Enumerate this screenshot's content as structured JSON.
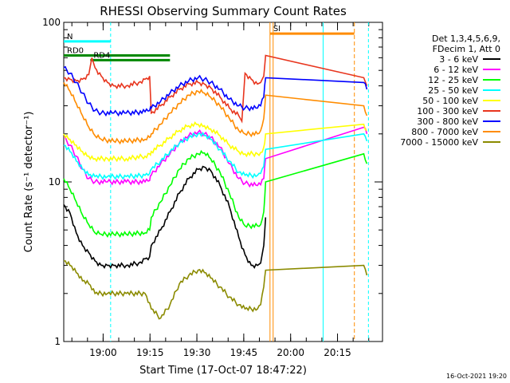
{
  "chart_data": {
    "type": "line",
    "title": "RHESSI Observing Summary Count Rates",
    "xlabel": "Start Time (17-Oct-07 18:47:22)",
    "ylabel": "Count Rate (s⁻¹ detector⁻¹)",
    "yscale": "log",
    "ylim": [
      1,
      100
    ],
    "xlim_minutes_after_start": [
      0,
      102
    ],
    "xticks": [
      {
        "label": "19:00",
        "minute": 12.6
      },
      {
        "label": "19:15",
        "minute": 27.6
      },
      {
        "label": "19:30",
        "minute": 42.6
      },
      {
        "label": "19:45",
        "minute": 57.6
      },
      {
        "label": "20:00",
        "minute": 72.6
      },
      {
        "label": "20:15",
        "minute": 87.6
      }
    ],
    "yticks": [
      {
        "label": "1",
        "value": 1
      },
      {
        "label": "10",
        "value": 10
      },
      {
        "label": "100",
        "value": 100
      }
    ],
    "legend": {
      "placement": "right",
      "header": [
        "Det 1,3,4,5,6,9,",
        "FDecim 1, Att 0"
      ],
      "entries": [
        {
          "name": "3 - 6 keV",
          "color": "#000000"
        },
        {
          "name": "6 - 12 keV",
          "color": "#ff00ff"
        },
        {
          "name": "12 - 25 keV",
          "color": "#00ff00"
        },
        {
          "name": "25 - 50 keV",
          "color": "#00ffff"
        },
        {
          "name": "50 - 100 keV",
          "color": "#ffff00"
        },
        {
          "name": "100 - 300 keV",
          "color": "#e8351e"
        },
        {
          "name": "300 - 800 keV",
          "color": "#0000ff"
        },
        {
          "name": "800 - 7000 keV",
          "color": "#ff8c00"
        },
        {
          "name": "7000 - 15000 keV",
          "color": "#8b8b00"
        }
      ]
    },
    "series": [
      {
        "name": "3 - 6 keV",
        "color": "#000000",
        "points": [
          [
            0,
            7.2
          ],
          [
            2,
            6.4
          ],
          [
            4,
            4.8
          ],
          [
            6,
            4.0
          ],
          [
            8,
            3.6
          ],
          [
            10,
            3.2
          ],
          [
            12,
            3.0
          ],
          [
            14,
            3.0
          ],
          [
            16,
            3.0
          ],
          [
            20,
            3.0
          ],
          [
            24,
            3.1
          ],
          [
            26,
            3.3
          ],
          [
            27.5,
            3.4
          ],
          [
            28,
            4.0
          ],
          [
            31,
            5.0
          ],
          [
            34,
            6.5
          ],
          [
            37,
            8.5
          ],
          [
            40,
            10.5
          ],
          [
            43,
            12.0
          ],
          [
            45,
            12.4
          ],
          [
            47,
            11.8
          ],
          [
            50,
            9.5
          ],
          [
            53,
            7.0
          ],
          [
            56,
            4.5
          ],
          [
            58,
            3.5
          ],
          [
            60,
            3.0
          ],
          [
            62,
            3.0
          ],
          [
            63,
            3.1
          ],
          [
            64,
            4.0
          ],
          [
            64.6,
            6.0
          ]
        ]
      },
      {
        "name": "6 - 12 keV",
        "color": "#ff00ff",
        "points": [
          [
            0,
            19.0
          ],
          [
            2,
            17.0
          ],
          [
            4,
            14.5
          ],
          [
            6,
            12.0
          ],
          [
            8,
            10.5
          ],
          [
            10,
            10.0
          ],
          [
            14,
            10.0
          ],
          [
            20,
            10.0
          ],
          [
            26,
            10.0
          ],
          [
            27.5,
            10.2
          ],
          [
            28,
            11.0
          ],
          [
            31,
            13.0
          ],
          [
            34,
            15.0
          ],
          [
            37,
            17.5
          ],
          [
            40,
            19.5
          ],
          [
            43,
            20.5
          ],
          [
            45,
            20.0
          ],
          [
            47,
            19.0
          ],
          [
            50,
            16.5
          ],
          [
            53,
            13.0
          ],
          [
            56,
            10.5
          ],
          [
            58,
            9.8
          ],
          [
            62,
            9.5
          ],
          [
            63,
            9.6
          ],
          [
            64,
            10.5
          ],
          [
            64.6,
            14.0
          ],
          [
            96,
            22.0
          ],
          [
            97,
            20.0
          ]
        ]
      },
      {
        "name": "12 - 25 keV",
        "color": "#00ff00",
        "points": [
          [
            0,
            10.5
          ],
          [
            2,
            9.0
          ],
          [
            4,
            7.5
          ],
          [
            6,
            6.2
          ],
          [
            8,
            5.4
          ],
          [
            10,
            4.8
          ],
          [
            12,
            4.7
          ],
          [
            16,
            4.7
          ],
          [
            20,
            4.7
          ],
          [
            26,
            4.8
          ],
          [
            27.5,
            5.0
          ],
          [
            28,
            6.0
          ],
          [
            31,
            7.5
          ],
          [
            34,
            9.5
          ],
          [
            37,
            12.0
          ],
          [
            40,
            14.0
          ],
          [
            43,
            15.0
          ],
          [
            45,
            15.2
          ],
          [
            47,
            14.0
          ],
          [
            50,
            11.5
          ],
          [
            53,
            8.5
          ],
          [
            56,
            6.0
          ],
          [
            58,
            5.3
          ],
          [
            62,
            5.3
          ],
          [
            63,
            5.4
          ],
          [
            64,
            6.5
          ],
          [
            64.6,
            10.0
          ],
          [
            96,
            15.0
          ],
          [
            97,
            13.0
          ]
        ]
      },
      {
        "name": "25 - 50 keV",
        "color": "#00ffff",
        "points": [
          [
            0,
            17.0
          ],
          [
            2,
            15.5
          ],
          [
            4,
            13.5
          ],
          [
            6,
            12.0
          ],
          [
            8,
            11.0
          ],
          [
            10,
            10.8
          ],
          [
            14,
            10.8
          ],
          [
            20,
            10.8
          ],
          [
            26,
            11.0
          ],
          [
            27.5,
            11.3
          ],
          [
            28,
            12.0
          ],
          [
            31,
            13.5
          ],
          [
            34,
            15.5
          ],
          [
            37,
            17.5
          ],
          [
            40,
            19.0
          ],
          [
            43,
            20.0
          ],
          [
            45,
            19.5
          ],
          [
            47,
            18.5
          ],
          [
            50,
            16.0
          ],
          [
            53,
            13.5
          ],
          [
            56,
            11.5
          ],
          [
            58,
            11.0
          ],
          [
            62,
            11.0
          ],
          [
            63,
            11.3
          ],
          [
            64,
            12.5
          ],
          [
            64.6,
            16.0
          ],
          [
            96,
            20.0
          ],
          [
            97,
            18.0
          ]
        ]
      },
      {
        "name": "50 - 100 keV",
        "color": "#ffff00",
        "points": [
          [
            0,
            20.0
          ],
          [
            2,
            18.5
          ],
          [
            4,
            17.0
          ],
          [
            6,
            15.5
          ],
          [
            8,
            14.5
          ],
          [
            10,
            14.0
          ],
          [
            14,
            14.0
          ],
          [
            20,
            14.0
          ],
          [
            26,
            14.5
          ],
          [
            27.5,
            15.0
          ],
          [
            28,
            15.5
          ],
          [
            31,
            17.0
          ],
          [
            34,
            19.0
          ],
          [
            37,
            21.0
          ],
          [
            40,
            22.5
          ],
          [
            43,
            23.0
          ],
          [
            45,
            22.5
          ],
          [
            47,
            21.5
          ],
          [
            50,
            19.5
          ],
          [
            53,
            17.0
          ],
          [
            56,
            15.5
          ],
          [
            58,
            15.0
          ],
          [
            62,
            15.0
          ],
          [
            63,
            15.3
          ],
          [
            64,
            16.5
          ],
          [
            64.6,
            20.0
          ],
          [
            96,
            23.0
          ],
          [
            97,
            21.0
          ]
        ]
      },
      {
        "name": "100 - 300 keV",
        "color": "#e8351e",
        "points": [
          [
            0,
            45.0
          ],
          [
            2,
            44.0
          ],
          [
            4,
            43.0
          ],
          [
            6,
            44.0
          ],
          [
            8,
            47.0
          ],
          [
            9,
            60.0
          ],
          [
            10,
            52.0
          ],
          [
            12,
            46.0
          ],
          [
            14,
            42.0
          ],
          [
            16,
            40.0
          ],
          [
            20,
            40.0
          ],
          [
            24,
            42.0
          ],
          [
            26,
            44.0
          ],
          [
            27.5,
            46.0
          ],
          [
            28,
            27.0
          ],
          [
            31,
            30.0
          ],
          [
            34,
            34.0
          ],
          [
            37,
            38.0
          ],
          [
            40,
            41.0
          ],
          [
            43,
            42.0
          ],
          [
            45,
            41.0
          ],
          [
            47,
            39.0
          ],
          [
            50,
            34.0
          ],
          [
            53,
            29.0
          ],
          [
            56,
            26.0
          ],
          [
            57,
            24.0
          ],
          [
            58,
            48.0
          ],
          [
            60,
            44.0
          ],
          [
            62,
            41.0
          ],
          [
            63,
            42.0
          ],
          [
            64,
            46.0
          ],
          [
            64.6,
            62.0
          ],
          [
            96,
            45.0
          ],
          [
            97,
            40.0
          ]
        ]
      },
      {
        "name": "300 - 800 keV",
        "color": "#0000ff",
        "points": [
          [
            0,
            52.0
          ],
          [
            2,
            48.0
          ],
          [
            4,
            42.0
          ],
          [
            6,
            36.0
          ],
          [
            8,
            31.0
          ],
          [
            10,
            28.0
          ],
          [
            12,
            27.0
          ],
          [
            16,
            27.0
          ],
          [
            20,
            27.0
          ],
          [
            26,
            27.5
          ],
          [
            27.5,
            28.0
          ],
          [
            28,
            29.0
          ],
          [
            31,
            32.0
          ],
          [
            34,
            36.0
          ],
          [
            37,
            40.0
          ],
          [
            40,
            43.0
          ],
          [
            43,
            45.0
          ],
          [
            45,
            44.0
          ],
          [
            47,
            42.0
          ],
          [
            50,
            38.0
          ],
          [
            53,
            33.0
          ],
          [
            56,
            30.0
          ],
          [
            58,
            29.0
          ],
          [
            62,
            29.0
          ],
          [
            63,
            30.0
          ],
          [
            64,
            34.0
          ],
          [
            64.6,
            45.0
          ],
          [
            96,
            42.0
          ],
          [
            97,
            38.0
          ]
        ]
      },
      {
        "name": "800 - 7000 keV",
        "color": "#ff8c00",
        "points": [
          [
            0,
            42.0
          ],
          [
            2,
            37.0
          ],
          [
            4,
            31.0
          ],
          [
            6,
            26.0
          ],
          [
            8,
            22.0
          ],
          [
            10,
            19.5
          ],
          [
            12,
            18.5
          ],
          [
            16,
            18.0
          ],
          [
            20,
            18.0
          ],
          [
            26,
            18.5
          ],
          [
            27.5,
            19.0
          ],
          [
            28,
            20.0
          ],
          [
            31,
            23.0
          ],
          [
            34,
            27.0
          ],
          [
            37,
            31.0
          ],
          [
            40,
            35.0
          ],
          [
            43,
            37.0
          ],
          [
            45,
            36.0
          ],
          [
            47,
            34.0
          ],
          [
            50,
            30.0
          ],
          [
            53,
            25.0
          ],
          [
            56,
            21.0
          ],
          [
            58,
            20.0
          ],
          [
            62,
            20.0
          ],
          [
            63,
            21.0
          ],
          [
            64,
            25.0
          ],
          [
            64.6,
            35.0
          ],
          [
            96,
            30.0
          ],
          [
            97,
            26.0
          ]
        ]
      },
      {
        "name": "7000 - 15000 keV",
        "color": "#8b8b00",
        "points": [
          [
            0,
            3.2
          ],
          [
            2,
            3.0
          ],
          [
            4,
            2.7
          ],
          [
            6,
            2.4
          ],
          [
            8,
            2.3
          ],
          [
            10,
            2.0
          ],
          [
            14,
            2.0
          ],
          [
            20,
            2.0
          ],
          [
            26,
            2.0
          ],
          [
            28,
            1.6
          ],
          [
            31,
            1.4
          ],
          [
            34,
            1.7
          ],
          [
            37,
            2.3
          ],
          [
            40,
            2.6
          ],
          [
            43,
            2.8
          ],
          [
            45,
            2.7
          ],
          [
            47,
            2.5
          ],
          [
            50,
            2.2
          ],
          [
            53,
            1.9
          ],
          [
            56,
            1.7
          ],
          [
            58,
            1.6
          ],
          [
            62,
            1.6
          ],
          [
            63,
            1.7
          ],
          [
            64,
            2.2
          ],
          [
            64.6,
            2.8
          ],
          [
            96,
            3.0
          ],
          [
            97,
            2.6
          ]
        ]
      }
    ],
    "annotations": [
      {
        "text": "N",
        "color": "#00ffff",
        "start_minute": 0,
        "end_minute": 15,
        "level": 76
      },
      {
        "text": "RD0",
        "color": "#008800",
        "start_minute": 0,
        "end_minute": 34,
        "level": 62
      },
      {
        "text": "RD4",
        "color": "#008800",
        "start_minute": 8.5,
        "end_minute": 34,
        "level": 58
      },
      {
        "text": "SI",
        "color": "#ff8c00",
        "start_minute": 66,
        "end_minute": 93,
        "level": 85
      }
    ],
    "footer_date": "16-Oct-2021 19:20"
  }
}
